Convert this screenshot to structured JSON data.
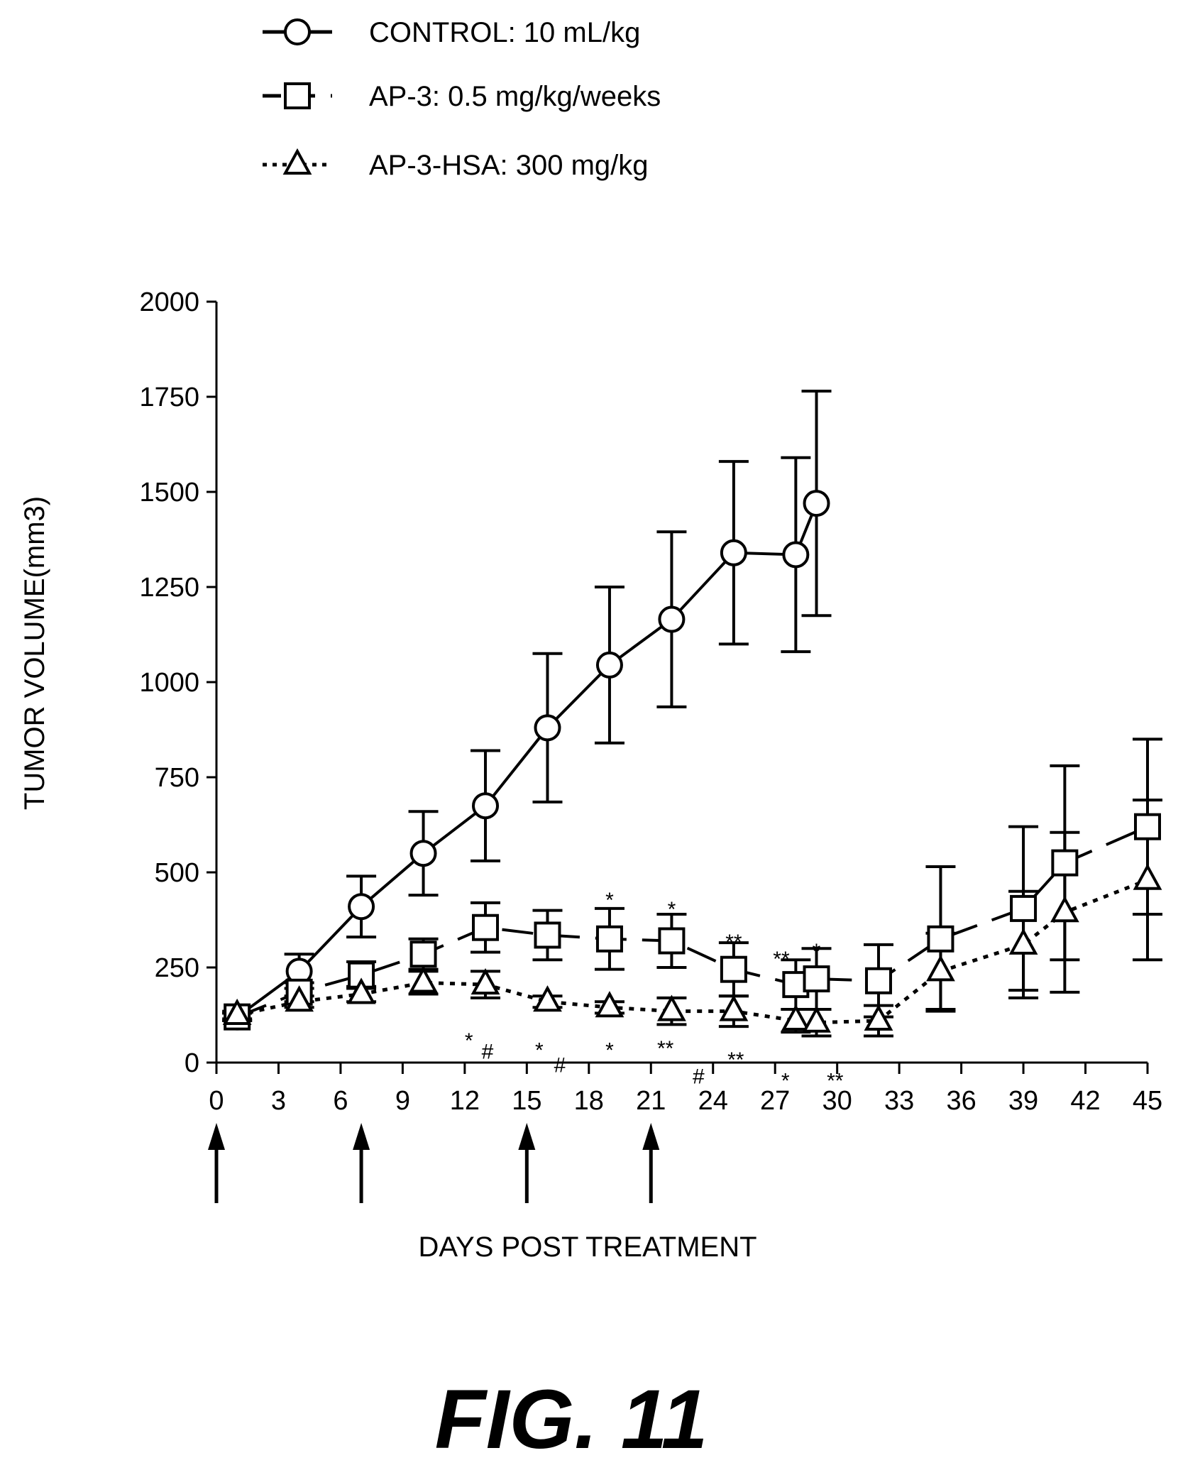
{
  "figure_label": "FIG. 11",
  "chart_data": {
    "type": "line",
    "title": "",
    "xlabel": "DAYS POST TREATMENT",
    "ylabel": "TUMOR VOLUME(mm3)",
    "xlim": [
      0,
      45
    ],
    "ylim": [
      0,
      2000
    ],
    "x_ticks": [
      "0",
      "3",
      "6",
      "9",
      "12",
      "15",
      "18",
      "21",
      "24",
      "27",
      "30",
      "33",
      "36",
      "39",
      "42",
      "45"
    ],
    "y_ticks": [
      "0",
      "250",
      "500",
      "750",
      "1000",
      "1250",
      "1500",
      "1750",
      "2000"
    ],
    "legend_position": "top",
    "dosing_days": [
      0,
      7,
      15,
      21
    ],
    "series": [
      {
        "name": "CONTROL: 10 mL/kg",
        "marker": "circle",
        "line_style": "solid",
        "x": [
          1,
          4,
          7,
          10,
          13,
          16,
          19,
          22,
          25,
          28,
          29
        ],
        "y": [
          120,
          240,
          410,
          550,
          675,
          880,
          1045,
          1165,
          1340,
          1335,
          1470
        ],
        "error": [
          10,
          45,
          80,
          110,
          145,
          195,
          205,
          230,
          240,
          255,
          295
        ]
      },
      {
        "name": "AP-3: 0.5 mg/kg/weeks",
        "marker": "square",
        "line_style": "dashed",
        "x": [
          1,
          4,
          7,
          10,
          13,
          16,
          19,
          22,
          25,
          28,
          29,
          32,
          35,
          39,
          41,
          45
        ],
        "y": [
          120,
          185,
          230,
          285,
          355,
          335,
          325,
          320,
          245,
          205,
          220,
          215,
          325,
          405,
          525,
          620
        ],
        "error": [
          10,
          25,
          35,
          40,
          65,
          65,
          80,
          70,
          70,
          65,
          80,
          95,
          190,
          215,
          255,
          230
        ]
      },
      {
        "name": "AP-3-HSA: 300 mg/kg",
        "marker": "triangle",
        "line_style": "dotted",
        "x": [
          1,
          4,
          7,
          10,
          13,
          16,
          19,
          22,
          25,
          28,
          29,
          32,
          35,
          39,
          41,
          45
        ],
        "y": [
          125,
          160,
          180,
          210,
          205,
          160,
          145,
          135,
          135,
          110,
          105,
          110,
          240,
          310,
          395,
          480
        ],
        "error": [
          10,
          15,
          20,
          30,
          35,
          15,
          15,
          35,
          40,
          30,
          35,
          40,
          100,
          140,
          210,
          210
        ]
      }
    ],
    "annotations": [
      {
        "text": "*",
        "x": 19,
        "y": 450
      },
      {
        "text": "*",
        "x": 22,
        "y": 425
      },
      {
        "text": "**",
        "x": 25,
        "y": 340
      },
      {
        "text": "**",
        "x": 27.3,
        "y": 295
      },
      {
        "text": "*",
        "x": 29,
        "y": 315
      },
      {
        "text": "*",
        "x": 12.2,
        "y": 80
      },
      {
        "text": "#",
        "x": 13.1,
        "y": 40
      },
      {
        "text": "*",
        "x": 15.6,
        "y": 55
      },
      {
        "text": "#",
        "x": 16.6,
        "y": 5
      },
      {
        "text": "*",
        "x": 19,
        "y": 55
      },
      {
        "text": "**",
        "x": 21.7,
        "y": 60
      },
      {
        "text": "#",
        "x": 23.3,
        "y": -25
      },
      {
        "text": "**",
        "x": 25.1,
        "y": 30
      },
      {
        "text": "*",
        "x": 27.5,
        "y": -25
      },
      {
        "text": "**",
        "x": 29.9,
        "y": -25
      }
    ]
  }
}
